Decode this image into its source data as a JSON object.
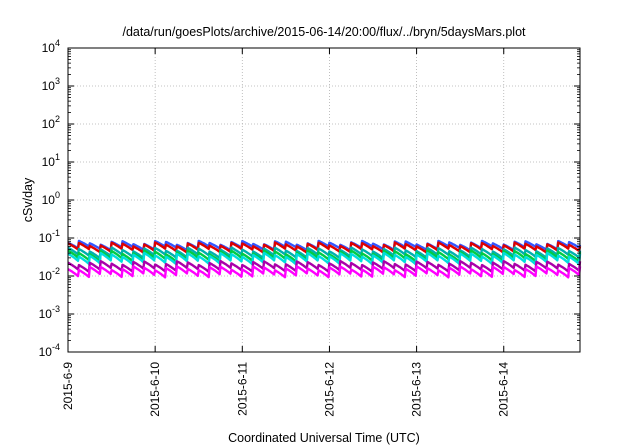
{
  "chart_data": {
    "type": "line",
    "title": "/data/run/goesPlots/archive/2015-06-14/20:00/flux/../bryn/5daysMars.plot",
    "xlabel": "Coordinated Universal Time (UTC)",
    "ylabel": "cSv/day",
    "y_scale": "log",
    "ylim": [
      0.0001,
      10000
    ],
    "y_ticks": [
      {
        "mant": "10",
        "exp": "-4"
      },
      {
        "mant": "10",
        "exp": "-3"
      },
      {
        "mant": "10",
        "exp": "-2"
      },
      {
        "mant": "10",
        "exp": "-1"
      },
      {
        "mant": "10",
        "exp": "0"
      },
      {
        "mant": "10",
        "exp": "1"
      },
      {
        "mant": "10",
        "exp": "2"
      },
      {
        "mant": "10",
        "exp": "3"
      },
      {
        "mant": "10",
        "exp": "4"
      }
    ],
    "x_range": [
      "2015-06-09T00:00",
      "2015-06-14T21:00"
    ],
    "x_ticks": [
      "2015-6-9",
      "2015-6-10",
      "2015-6-11",
      "2015-6-12",
      "2015-6-13",
      "2015-6-14"
    ],
    "grid": true,
    "sawtooth_period_hours": 3,
    "series": [
      {
        "color": "#3355ff",
        "base": 0.052,
        "peak": 0.075
      },
      {
        "color": "#dd0000",
        "base": 0.045,
        "peak": 0.068
      },
      {
        "color": "#00b0b0",
        "base": 0.032,
        "peak": 0.05
      },
      {
        "color": "#00cc44",
        "base": 0.026,
        "peak": 0.042
      },
      {
        "color": "#00dddd",
        "base": 0.022,
        "peak": 0.036
      },
      {
        "color": "#aa00aa",
        "base": 0.014,
        "peak": 0.022
      },
      {
        "color": "#ff00ff",
        "base": 0.01,
        "peak": 0.016
      }
    ]
  }
}
